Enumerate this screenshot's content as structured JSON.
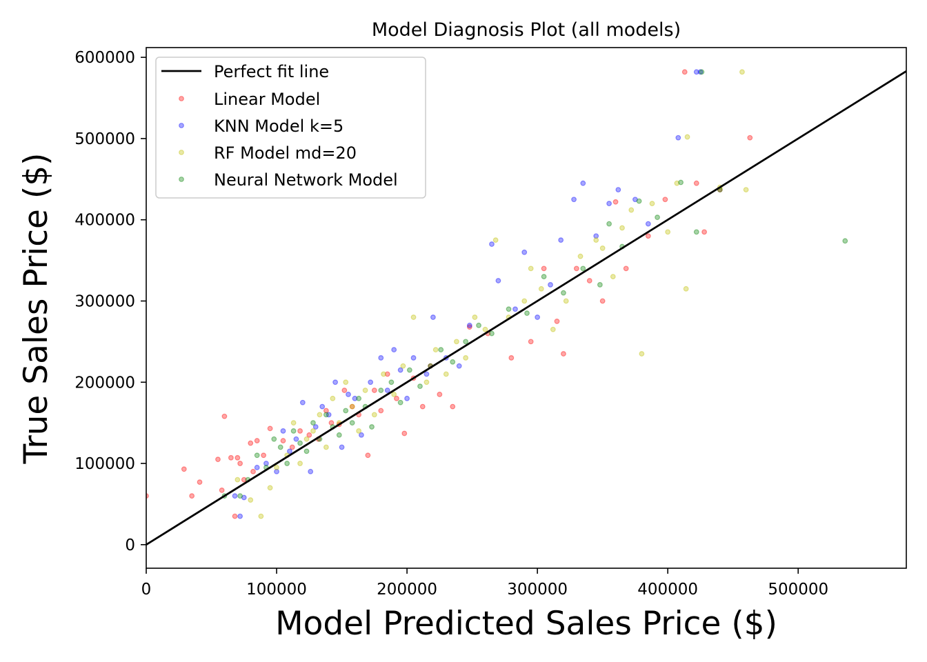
{
  "chart_data": {
    "type": "scatter",
    "title": "Model Diagnosis Plot (all models)",
    "xlabel": "Model Predicted Sales Price ($)",
    "ylabel": "True Sales Price ($)",
    "xlim": [
      0,
      582933
    ],
    "ylim": [
      -29000,
      612000
    ],
    "xticks": [
      0,
      100000,
      200000,
      300000,
      400000,
      500000
    ],
    "yticks": [
      0,
      100000,
      200000,
      300000,
      400000,
      500000,
      600000
    ],
    "grid": false,
    "legend_position": "top-left",
    "reference_line": {
      "name": "Perfect fit line",
      "color": "#000000",
      "x": [
        0,
        582933
      ],
      "y": [
        0,
        582933
      ]
    },
    "series": [
      {
        "name": "Linear Model",
        "color": "#ff0000",
        "x": [
          0,
          29000,
          35000,
          41000,
          55000,
          58000,
          60000,
          65000,
          68000,
          70000,
          72000,
          75000,
          80000,
          82000,
          85000,
          90000,
          95000,
          105000,
          112000,
          118000,
          125000,
          132000,
          138000,
          142000,
          148000,
          152000,
          158000,
          163000,
          170000,
          175000,
          180000,
          185000,
          192000,
          198000,
          205000,
          212000,
          218000,
          225000,
          235000,
          248000,
          262000,
          280000,
          295000,
          305000,
          315000,
          320000,
          330000,
          340000,
          350000,
          360000,
          368000,
          385000,
          398000,
          413000,
          422000,
          428000,
          440000,
          463000
        ],
        "y": [
          60000,
          93000,
          60000,
          77000,
          105000,
          67000,
          158000,
          107000,
          35000,
          107000,
          100000,
          80000,
          125000,
          90000,
          128000,
          110000,
          143000,
          128000,
          120000,
          140000,
          135000,
          130000,
          165000,
          150000,
          148000,
          190000,
          170000,
          160000,
          110000,
          190000,
          165000,
          210000,
          180000,
          137000,
          205000,
          170000,
          220000,
          185000,
          170000,
          268000,
          260000,
          230000,
          250000,
          340000,
          275000,
          235000,
          340000,
          325000,
          300000,
          422000,
          340000,
          380000,
          425000,
          582000,
          445000,
          385000,
          437000,
          501000
        ]
      },
      {
        "name": "KNN Model k=5",
        "color": "#0000ff",
        "x": [
          68000,
          72000,
          75000,
          85000,
          92000,
          100000,
          105000,
          110000,
          115000,
          120000,
          126000,
          130000,
          135000,
          140000,
          145000,
          150000,
          155000,
          160000,
          165000,
          172000,
          180000,
          185000,
          190000,
          195000,
          200000,
          205000,
          215000,
          220000,
          230000,
          240000,
          248000,
          265000,
          270000,
          283000,
          290000,
          300000,
          310000,
          318000,
          328000,
          335000,
          345000,
          355000,
          362000,
          375000,
          385000,
          408000,
          422000,
          425000
        ],
        "y": [
          60000,
          35000,
          58000,
          95000,
          100000,
          90000,
          140000,
          115000,
          130000,
          175000,
          90000,
          145000,
          170000,
          160000,
          200000,
          120000,
          185000,
          180000,
          135000,
          200000,
          230000,
          190000,
          240000,
          215000,
          180000,
          230000,
          210000,
          280000,
          230000,
          220000,
          270000,
          370000,
          325000,
          290000,
          360000,
          280000,
          320000,
          375000,
          425000,
          445000,
          380000,
          420000,
          437000,
          425000,
          395000,
          501000,
          582000,
          582000
        ]
      },
      {
        "name": "RF Model md=20",
        "color": "#bfbf00",
        "x": [
          70000,
          80000,
          88000,
          95000,
          100000,
          108000,
          113000,
          118000,
          123000,
          128000,
          133000,
          138000,
          143000,
          148000,
          153000,
          158000,
          163000,
          168000,
          175000,
          182000,
          190000,
          197000,
          205000,
          215000,
          222000,
          230000,
          238000,
          245000,
          252000,
          260000,
          268000,
          278000,
          290000,
          295000,
          303000,
          312000,
          322000,
          333000,
          345000,
          350000,
          358000,
          365000,
          372000,
          380000,
          388000,
          400000,
          407000,
          414000,
          415000,
          440000,
          457000,
          460000
        ],
        "y": [
          80000,
          55000,
          35000,
          70000,
          95000,
          110000,
          150000,
          100000,
          130000,
          140000,
          160000,
          120000,
          180000,
          150000,
          200000,
          170000,
          140000,
          190000,
          160000,
          210000,
          185000,
          220000,
          280000,
          200000,
          240000,
          210000,
          250000,
          230000,
          280000,
          265000,
          375000,
          280000,
          300000,
          340000,
          315000,
          265000,
          300000,
          355000,
          375000,
          365000,
          330000,
          390000,
          412000,
          235000,
          420000,
          385000,
          445000,
          315000,
          502000,
          440000,
          582000,
          437000
        ]
      },
      {
        "name": "Neural Network Model",
        "color": "#008000",
        "x": [
          60000,
          72000,
          78000,
          85000,
          92000,
          98000,
          103000,
          108000,
          113000,
          118000,
          123000,
          128000,
          133000,
          138000,
          143000,
          148000,
          153000,
          158000,
          163000,
          168000,
          173000,
          180000,
          188000,
          195000,
          202000,
          210000,
          218000,
          226000,
          235000,
          245000,
          255000,
          265000,
          278000,
          292000,
          305000,
          320000,
          335000,
          348000,
          355000,
          365000,
          378000,
          392000,
          410000,
          422000,
          426000,
          440000,
          536000
        ],
        "y": [
          60000,
          60000,
          80000,
          110000,
          95000,
          130000,
          120000,
          100000,
          140000,
          125000,
          115000,
          150000,
          130000,
          160000,
          145000,
          135000,
          165000,
          150000,
          180000,
          170000,
          145000,
          190000,
          200000,
          175000,
          215000,
          195000,
          220000,
          240000,
          225000,
          250000,
          270000,
          260000,
          290000,
          285000,
          330000,
          310000,
          340000,
          320000,
          395000,
          367000,
          423000,
          403000,
          446000,
          385000,
          582000,
          437000,
          374000
        ]
      }
    ]
  }
}
